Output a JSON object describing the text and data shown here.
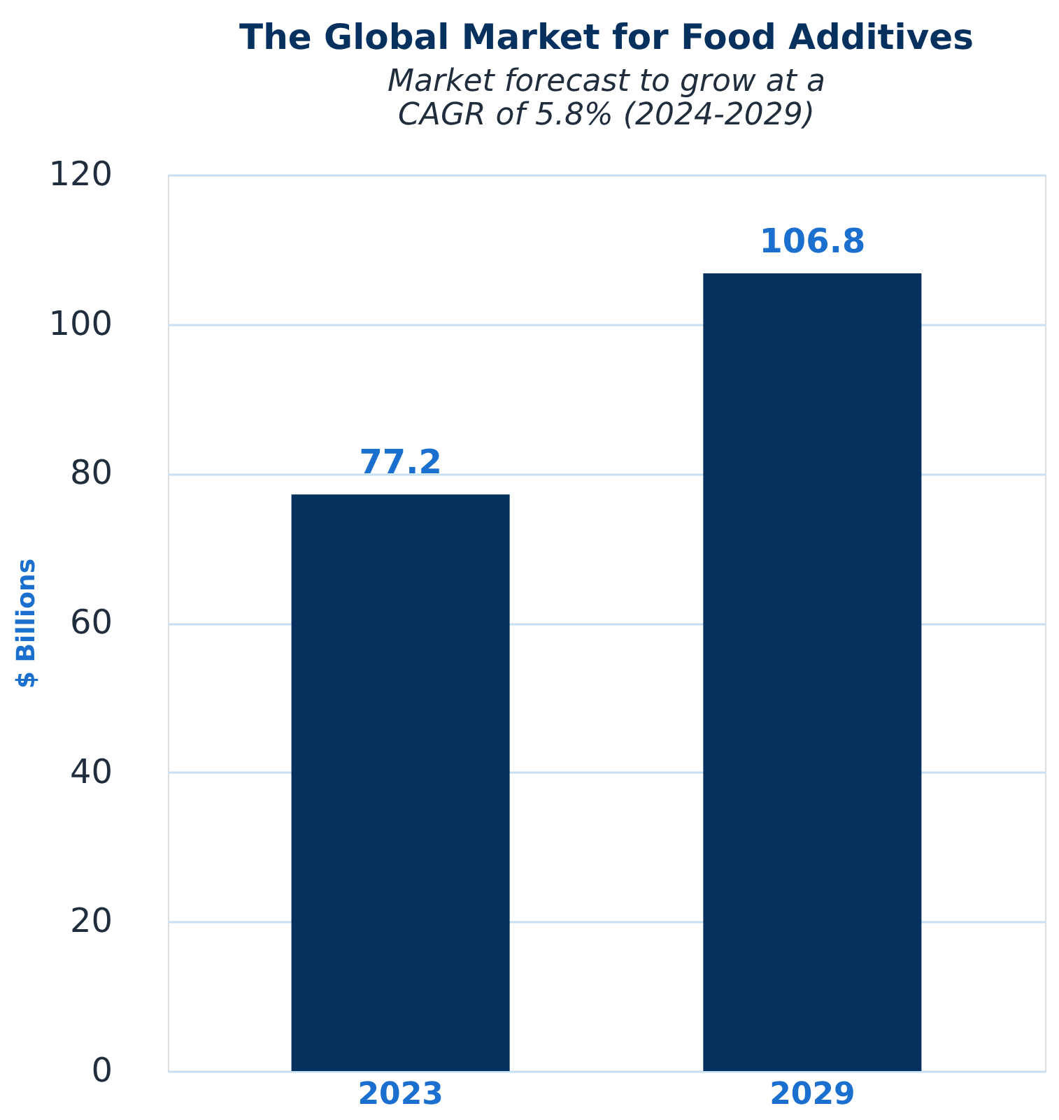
{
  "chart_data": {
    "type": "bar",
    "title": "The Global Market for Food Additives",
    "subtitle": [
      "Market forecast to grow at a",
      "CAGR of 5.8% (2024-2029)"
    ],
    "ylabel": "$ Billions",
    "categories": [
      "2023",
      "2029"
    ],
    "values": [
      77.2,
      106.8
    ],
    "color": "#06305e",
    "ylim": [
      0,
      120
    ],
    "yticks": [
      0,
      20,
      40,
      60,
      80,
      100,
      120
    ],
    "grid": "y",
    "data_labels": true
  }
}
